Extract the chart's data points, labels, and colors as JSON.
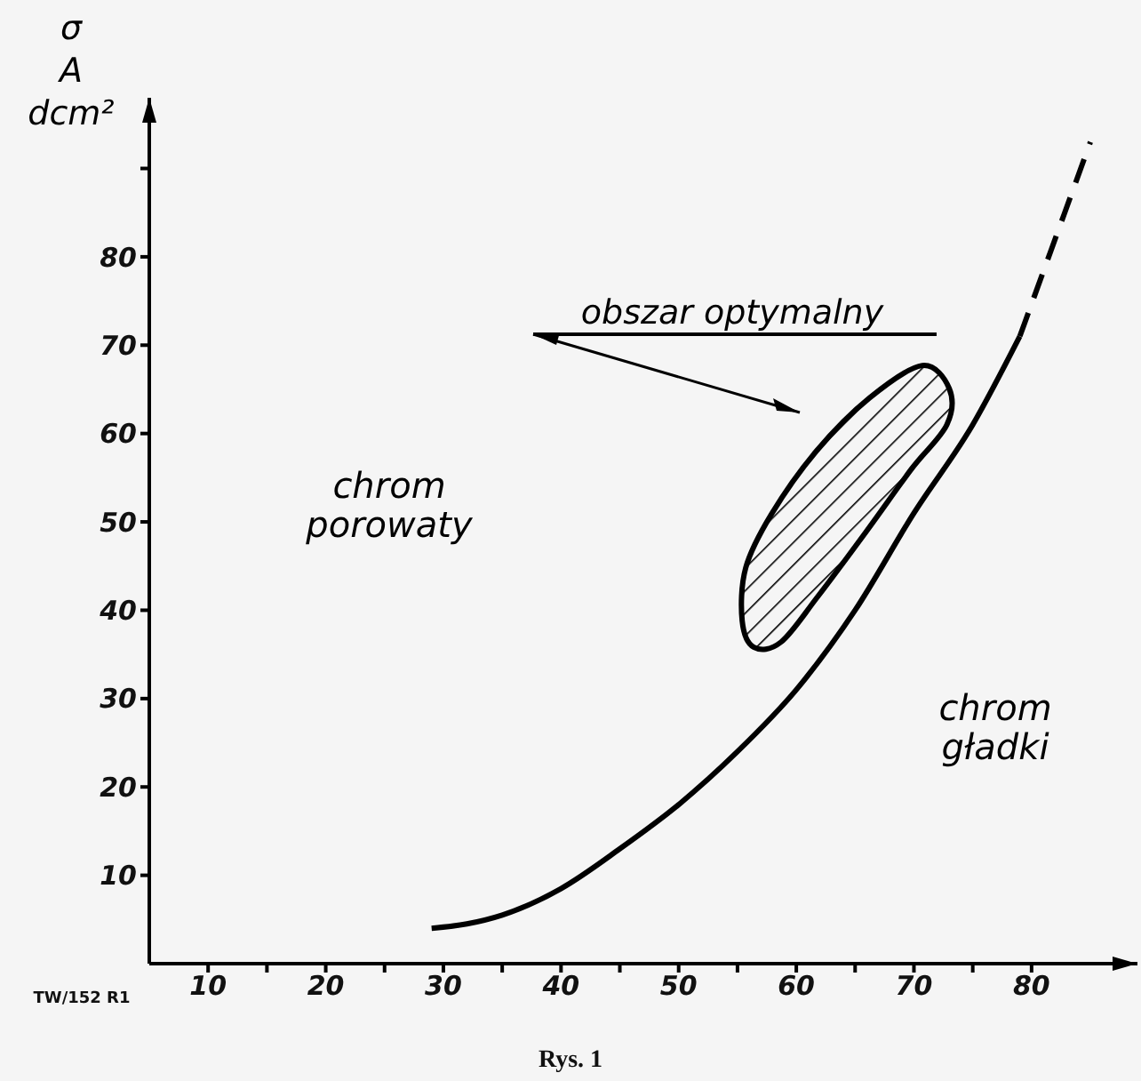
{
  "chart_data": {
    "type": "line",
    "ylabel": "σ\nA\ndcm²",
    "xlim": [
      5,
      89
    ],
    "ylim": [
      0,
      98
    ],
    "xticks": [
      10,
      {
        "value": 15,
        "label": null
      },
      20,
      {
        "value": 25,
        "label": null
      },
      30,
      {
        "value": 35,
        "label": null
      },
      40,
      {
        "value": 45,
        "label": null
      },
      50,
      {
        "value": 55,
        "label": null
      },
      60,
      {
        "value": 65,
        "label": null
      },
      70,
      {
        "value": 75,
        "label": null
      },
      80
    ],
    "yticks": [
      10,
      20,
      30,
      40,
      50,
      60,
      70,
      80,
      {
        "value": 90,
        "label": null
      }
    ],
    "marker": "none",
    "series": [
      {
        "type": "line",
        "color": "#000000",
        "line_style": "solid",
        "x": [
          29,
          32,
          35,
          40,
          45,
          50,
          55,
          60,
          65,
          70,
          75,
          79
        ],
        "values": [
          4,
          4.5,
          5.5,
          8.5,
          13,
          18,
          24,
          31,
          40,
          51,
          61,
          71
        ]
      },
      {
        "type": "line",
        "color": "#000000",
        "line_style": "dashed",
        "x": [
          79,
          82,
          85
        ],
        "values": [
          71,
          82,
          93
        ]
      },
      {
        "type": "area",
        "color": "#000000",
        "x": [
          70.7,
          73,
          72.8,
          69.8,
          66,
          61.8,
          58.7,
          56.4,
          55.4,
          55.7,
          57.9,
          61.7,
          66.2
        ],
        "values": [
          67.7,
          65.1,
          61,
          56,
          49,
          41.5,
          36.4,
          35.8,
          38.8,
          44.8,
          50.9,
          58,
          64
        ]
      }
    ],
    "annotations": [
      "obszar optymalny",
      "chrom\nporowaty",
      "chrom\ngładki",
      "TW/152 R1",
      "Rys. 1"
    ]
  }
}
